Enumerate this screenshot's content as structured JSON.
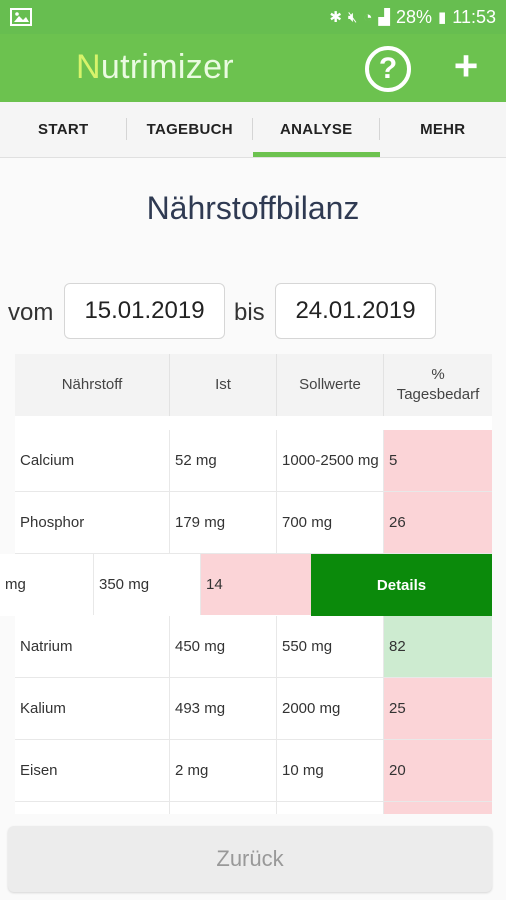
{
  "status": {
    "battery": "28%",
    "time": "11:53"
  },
  "app": {
    "brand_first": "N",
    "brand_rest": "utrimizer",
    "help_glyph": "?",
    "add_glyph": "+"
  },
  "tabs": [
    {
      "label": "START"
    },
    {
      "label": "TAGEBUCH"
    },
    {
      "label": "ANALYSE"
    },
    {
      "label": "MEHR"
    }
  ],
  "page": {
    "title": "Nährstoffbilanz",
    "from_label": "vom",
    "from_value": "15.01.2019",
    "to_label": "bis",
    "to_value": "24.01.2019"
  },
  "table": {
    "headers": {
      "nutrient": "Nährstoff",
      "actual": "Ist",
      "target": "Sollwerte",
      "percent_line1": "%",
      "percent_line2": "Tagesbedarf"
    },
    "rows": [
      {
        "nutrient": "Calcium",
        "actual": "52 mg",
        "target": "1000-2500 mg",
        "percent": "5"
      },
      {
        "nutrient": "Phosphor",
        "actual": "179 mg",
        "target": "700 mg",
        "percent": "26"
      },
      {
        "nutrient": "Natrium",
        "actual": "450 mg",
        "target": "550 mg",
        "percent": "82"
      },
      {
        "nutrient": "Kalium",
        "actual": "493 mg",
        "target": "2000 mg",
        "percent": "25"
      },
      {
        "nutrient": "Eisen",
        "actual": "2 mg",
        "target": "10 mg",
        "percent": "20"
      }
    ],
    "swiped_row": {
      "actual": "mg",
      "target": "350 mg",
      "percent": "14",
      "details_label": "Details"
    }
  },
  "footer": {
    "back_label": "Zurück"
  },
  "colors": {
    "primary": "#6cc24f",
    "details": "#0b8a0b",
    "low": "#fbd4d7",
    "ok": "#cdebd0"
  }
}
